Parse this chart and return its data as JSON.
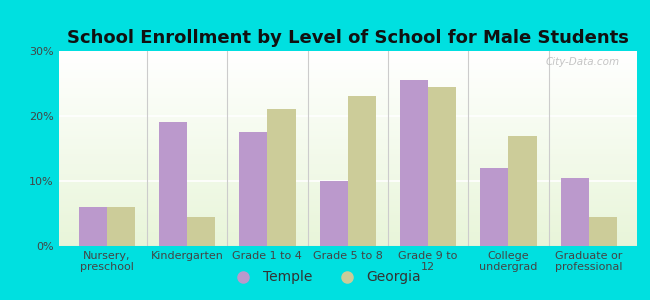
{
  "title": "School Enrollment by Level of School for Male Students",
  "categories": [
    "Nursery,\npreschool",
    "Kindergarten",
    "Grade 1 to 4",
    "Grade 5 to 8",
    "Grade 9 to\n12",
    "College\nundergrad",
    "Graduate or\nprofessional"
  ],
  "temple_values": [
    6,
    19,
    17.5,
    10,
    25.5,
    12,
    10.5
  ],
  "georgia_values": [
    6,
    4.5,
    21,
    23,
    24.5,
    17,
    4.5
  ],
  "temple_color": "#bb99cc",
  "georgia_color": "#cccc99",
  "bar_width": 0.35,
  "ylim": [
    0,
    30
  ],
  "yticks": [
    0,
    10,
    20,
    30
  ],
  "ytick_labels": [
    "0%",
    "10%",
    "20%",
    "30%"
  ],
  "legend_labels": [
    "Temple",
    "Georgia"
  ],
  "outer_bg": "#00e0e0",
  "plot_bg": "#f2f8ec",
  "title_fontsize": 13,
  "tick_fontsize": 8,
  "legend_fontsize": 10,
  "watermark": "City-Data.com"
}
